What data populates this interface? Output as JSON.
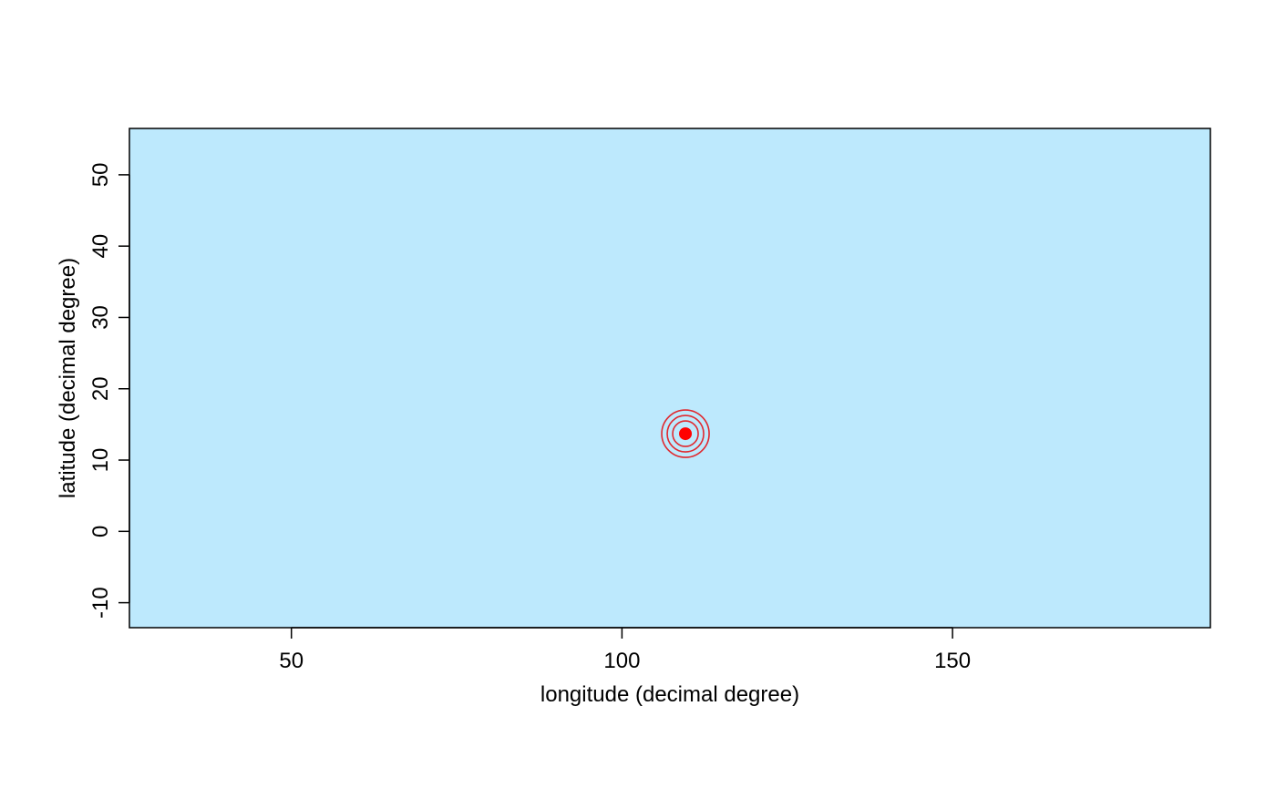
{
  "chart_data": {
    "type": "scatter",
    "title": "",
    "xlabel": "longitude (decimal degree)",
    "ylabel": "latitude (decimal degree)",
    "xlim": [
      25.5,
      189
    ],
    "ylim": [
      -13.5,
      56.5
    ],
    "x_ticks": [
      50,
      100,
      150
    ],
    "y_ticks": [
      -10,
      0,
      10,
      20,
      30,
      40,
      50
    ],
    "grid": false,
    "legend": "none",
    "background_color": "#bde9fd",
    "series": [
      {
        "points": [
          {
            "x": 109.6,
            "y": 13.7
          }
        ],
        "color": "#ff0000",
        "marker": "filled-circle-with-concentric-rings",
        "rings": 3
      }
    ]
  }
}
